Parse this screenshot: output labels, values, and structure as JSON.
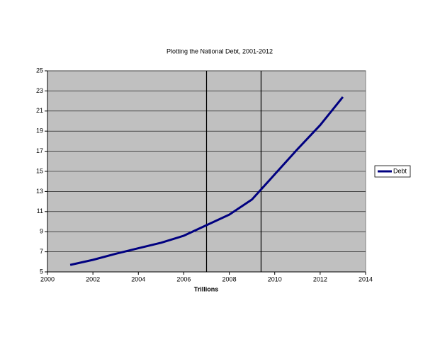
{
  "chart_data": {
    "type": "line",
    "title": "Plotting the National Debt, 2001-2012",
    "x_label": "Trillions",
    "x": [
      2001,
      2002,
      2003,
      2004,
      2005,
      2006,
      2007,
      2008,
      2009,
      2010,
      2011,
      2012,
      2013
    ],
    "series": [
      {
        "name": "Debt",
        "color": "#000080",
        "values": [
          5.7,
          6.2,
          6.8,
          7.35,
          7.9,
          8.6,
          9.65,
          10.7,
          12.2,
          14.7,
          17.2,
          19.6,
          22.4
        ]
      }
    ],
    "vlines": [
      2007,
      2009.4
    ],
    "xlim": [
      2000,
      2014
    ],
    "xticks": [
      2000,
      2002,
      2004,
      2006,
      2008,
      2010,
      2012,
      2014
    ],
    "ylim": [
      5,
      25
    ],
    "yticks": [
      5,
      7,
      9,
      11,
      13,
      15,
      17,
      19,
      21,
      23,
      25
    ],
    "grid": true,
    "legend": "right",
    "background": "#c0c0c0"
  }
}
